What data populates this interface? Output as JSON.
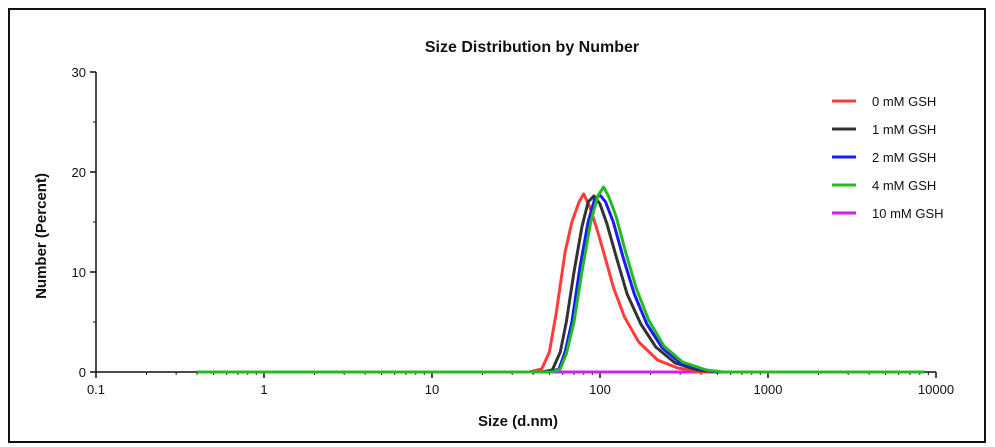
{
  "chart_data": {
    "type": "line",
    "title": "Size Distribution by Number",
    "xlabel": "Size (d.nm)",
    "ylabel": "Number (Percent)",
    "xscale": "log",
    "xlim": [
      0.1,
      10000
    ],
    "ylim": [
      0,
      30
    ],
    "x_ticks": [
      "0.1",
      "1",
      "10",
      "100",
      "1000",
      "10000"
    ],
    "y_ticks": [
      "0",
      "10",
      "20",
      "30"
    ],
    "legend_position": "top-right",
    "series": [
      {
        "name": "0 mM GSH",
        "color": "#ff3b3b",
        "points": [
          [
            0.4,
            0
          ],
          [
            10,
            0
          ],
          [
            38,
            0
          ],
          [
            45,
            0.3
          ],
          [
            50,
            2
          ],
          [
            55,
            6
          ],
          [
            62,
            12
          ],
          [
            68,
            15
          ],
          [
            75,
            17
          ],
          [
            80,
            17.8
          ],
          [
            87,
            16.5
          ],
          [
            95,
            14.5
          ],
          [
            105,
            12
          ],
          [
            120,
            8.5
          ],
          [
            140,
            5.5
          ],
          [
            170,
            3
          ],
          [
            220,
            1.2
          ],
          [
            290,
            0.4
          ],
          [
            400,
            0
          ],
          [
            8500,
            0
          ]
        ]
      },
      {
        "name": "1 mM GSH",
        "color": "#333333",
        "points": [
          [
            0.4,
            0
          ],
          [
            10,
            0
          ],
          [
            45,
            0
          ],
          [
            52,
            0.2
          ],
          [
            58,
            2
          ],
          [
            63,
            5
          ],
          [
            70,
            10
          ],
          [
            78,
            14.5
          ],
          [
            85,
            17
          ],
          [
            92,
            17.6
          ],
          [
            100,
            16.8
          ],
          [
            110,
            14.8
          ],
          [
            125,
            11.5
          ],
          [
            145,
            7.8
          ],
          [
            175,
            4.8
          ],
          [
            215,
            2.5
          ],
          [
            280,
            0.9
          ],
          [
            380,
            0.2
          ],
          [
            500,
            0
          ],
          [
            8500,
            0
          ]
        ]
      },
      {
        "name": "2 mM GSH",
        "color": "#1a1aff",
        "points": [
          [
            0.4,
            0
          ],
          [
            10,
            0
          ],
          [
            50,
            0
          ],
          [
            57,
            0.3
          ],
          [
            62,
            2
          ],
          [
            68,
            5
          ],
          [
            76,
            10.5
          ],
          [
            85,
            15
          ],
          [
            93,
            17.3
          ],
          [
            100,
            17.7
          ],
          [
            108,
            17
          ],
          [
            120,
            15
          ],
          [
            137,
            11.5
          ],
          [
            160,
            7.8
          ],
          [
            190,
            4.8
          ],
          [
            235,
            2.4
          ],
          [
            300,
            0.9
          ],
          [
            420,
            0.2
          ],
          [
            520,
            0
          ],
          [
            8500,
            0
          ]
        ]
      },
      {
        "name": "4 mM GSH",
        "color": "#22bb22",
        "points": [
          [
            0.4,
            0
          ],
          [
            10,
            0
          ],
          [
            52,
            0
          ],
          [
            58,
            0.3
          ],
          [
            63,
            1.8
          ],
          [
            70,
            5
          ],
          [
            78,
            10
          ],
          [
            88,
            15
          ],
          [
            97,
            17.6
          ],
          [
            105,
            18.5
          ],
          [
            113,
            17.5
          ],
          [
            125,
            15.5
          ],
          [
            142,
            12
          ],
          [
            165,
            8.3
          ],
          [
            195,
            5.2
          ],
          [
            240,
            2.6
          ],
          [
            310,
            1
          ],
          [
            430,
            0.2
          ],
          [
            540,
            0
          ],
          [
            8500,
            0
          ]
        ]
      },
      {
        "name": "10 mM GSH",
        "color": "#cc22ee",
        "points": [
          [
            0.4,
            0
          ],
          [
            8500,
            0
          ]
        ]
      }
    ]
  }
}
